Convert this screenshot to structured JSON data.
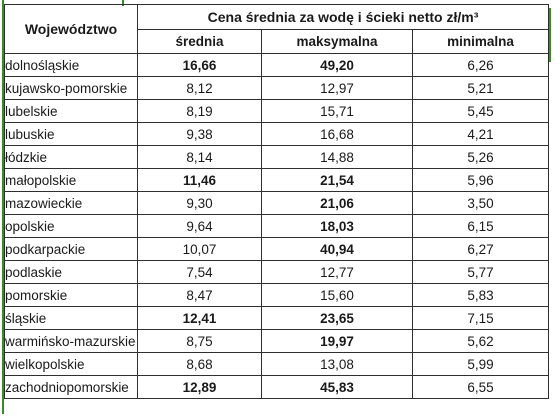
{
  "table": {
    "header": {
      "voivodeship": "Województwo",
      "group_title": "Cena średnia za wodę i ścieki netto zł/m³",
      "columns": [
        "średnia",
        "maksymalna",
        "minimalna"
      ]
    },
    "rows": [
      {
        "name": "dolnośląskie",
        "avg": "16,66",
        "max": "49,20",
        "min": "6,26",
        "avg_bold": true,
        "max_bold": true
      },
      {
        "name": "kujawsko-pomorskie",
        "avg": "8,12",
        "max": "12,97",
        "min": "5,21",
        "avg_bold": false,
        "max_bold": false
      },
      {
        "name": "lubelskie",
        "avg": "8,19",
        "max": "15,71",
        "min": "5,45",
        "avg_bold": false,
        "max_bold": false
      },
      {
        "name": "lubuskie",
        "avg": "9,38",
        "max": "16,68",
        "min": "4,21",
        "avg_bold": false,
        "max_bold": false
      },
      {
        "name": "łódzkie",
        "avg": "8,14",
        "max": "14,88",
        "min": "5,26",
        "avg_bold": false,
        "max_bold": false
      },
      {
        "name": "małopolskie",
        "avg": "11,46",
        "max": "21,54",
        "min": "5,96",
        "avg_bold": true,
        "max_bold": true
      },
      {
        "name": "mazowieckie",
        "avg": "9,30",
        "max": "21,06",
        "min": "3,50",
        "avg_bold": false,
        "max_bold": true
      },
      {
        "name": "opolskie",
        "avg": "9,64",
        "max": "18,03",
        "min": "6,15",
        "avg_bold": false,
        "max_bold": true
      },
      {
        "name": "podkarpackie",
        "avg": "10,07",
        "max": "40,94",
        "min": "6,27",
        "avg_bold": false,
        "max_bold": true
      },
      {
        "name": "podlaskie",
        "avg": "7,54",
        "max": "12,77",
        "min": "5,77",
        "avg_bold": false,
        "max_bold": false
      },
      {
        "name": "pomorskie",
        "avg": "8,47",
        "max": "15,60",
        "min": "5,83",
        "avg_bold": false,
        "max_bold": false
      },
      {
        "name": "śląskie",
        "avg": "12,41",
        "max": "23,65",
        "min": "7,15",
        "avg_bold": true,
        "max_bold": true
      },
      {
        "name": "warmińsko-mazurskie",
        "avg": "8,75",
        "max": "19,97",
        "min": "5,62",
        "avg_bold": false,
        "max_bold": true
      },
      {
        "name": "wielkopolskie",
        "avg": "8,68",
        "max": "13,08",
        "min": "5,99",
        "avg_bold": false,
        "max_bold": false
      },
      {
        "name": "zachodniopomorskie",
        "avg": "12,89",
        "max": "45,83",
        "min": "6,55",
        "avg_bold": true,
        "max_bold": true
      }
    ]
  },
  "colors": {
    "frame_accent": "#3a8a2a",
    "border": "#2f2f2f",
    "text": "#1a1a1a"
  }
}
